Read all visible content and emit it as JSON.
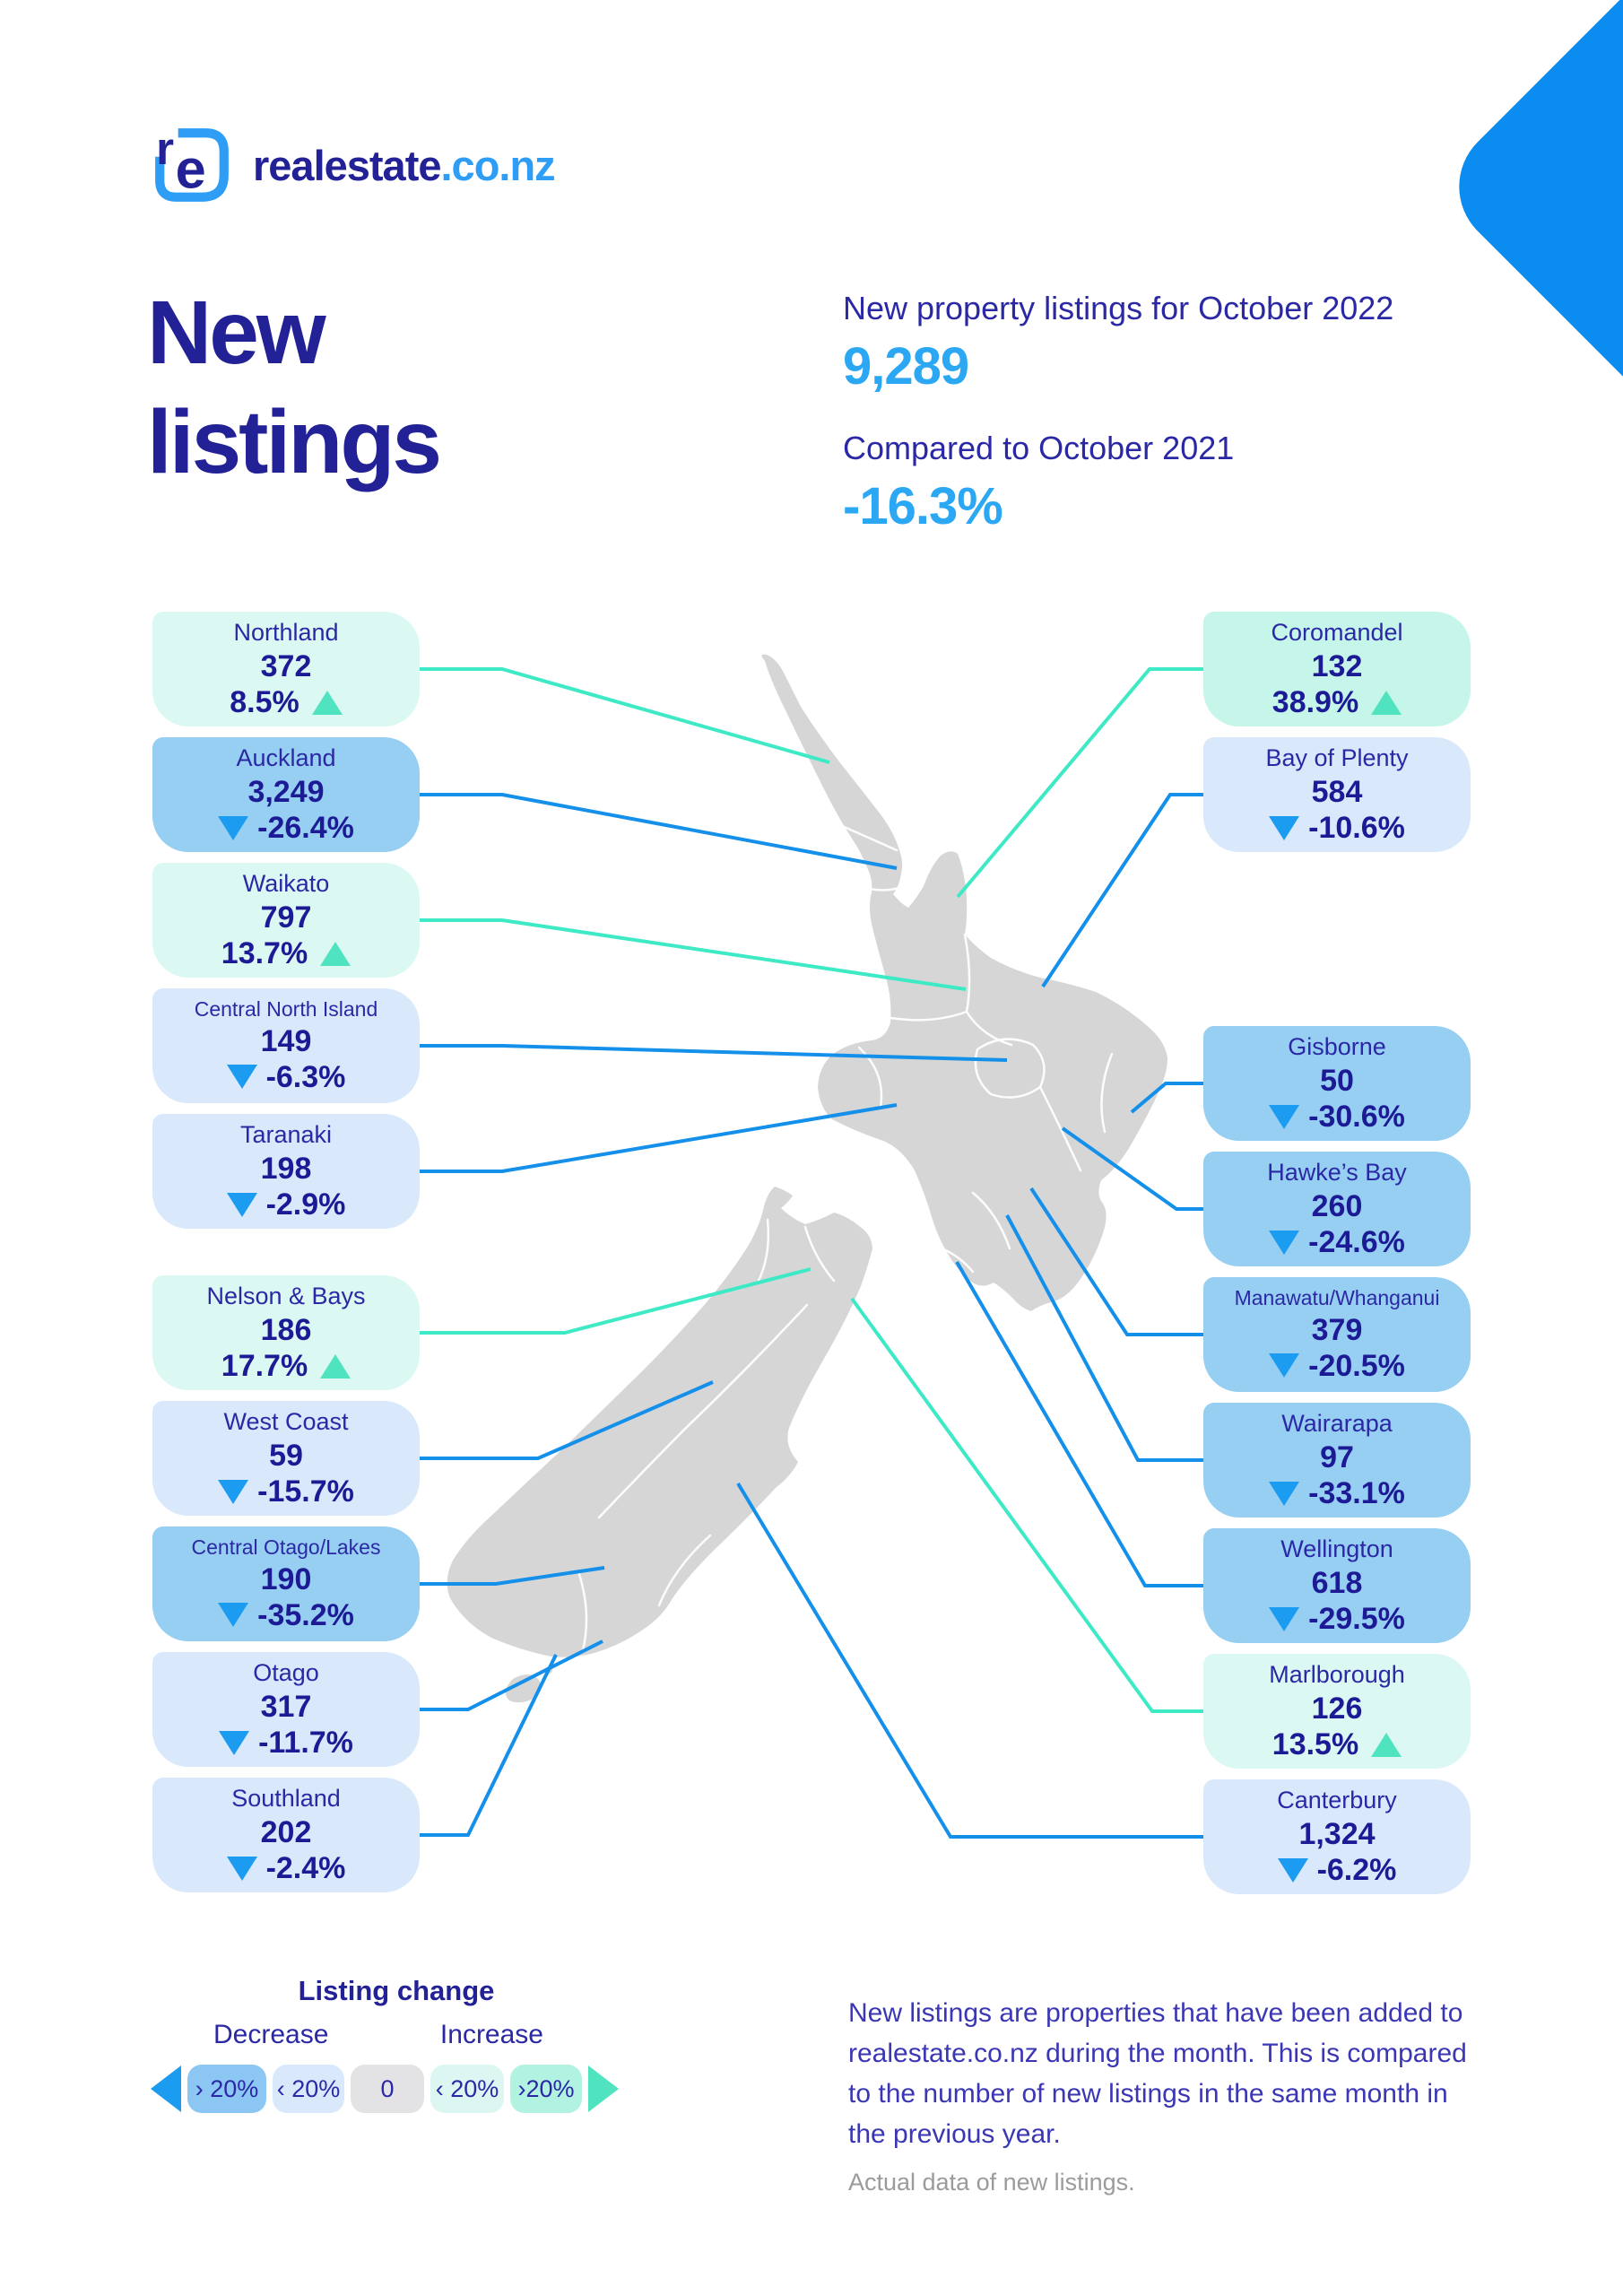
{
  "logo": {
    "icon_text": "re",
    "brand": "realestate",
    "tld": ".co.nz"
  },
  "header": {
    "title_line1": "New",
    "title_line2": "listings",
    "stat1_label": "New property listings for October 2022",
    "stat1_value": "9,289",
    "stat2_label": "Compared to October 2021",
    "stat2_value": "-16.3%"
  },
  "regions": [
    {
      "name": "Northland",
      "side": "left",
      "value": "372",
      "change": "8.5%",
      "direction": "up",
      "magnitude": "small"
    },
    {
      "name": "Auckland",
      "side": "left",
      "value": "3,249",
      "change": "-26.4%",
      "direction": "down",
      "magnitude": "large"
    },
    {
      "name": "Waikato",
      "side": "left",
      "value": "797",
      "change": "13.7%",
      "direction": "up",
      "magnitude": "small"
    },
    {
      "name": "Central North Island",
      "side": "left",
      "value": "149",
      "change": "-6.3%",
      "direction": "down",
      "magnitude": "small"
    },
    {
      "name": "Taranaki",
      "side": "left",
      "value": "198",
      "change": "-2.9%",
      "direction": "down",
      "magnitude": "small"
    },
    {
      "name": "Nelson & Bays",
      "side": "left",
      "value": "186",
      "change": "17.7%",
      "direction": "up",
      "magnitude": "small"
    },
    {
      "name": "West Coast",
      "side": "left",
      "value": "59",
      "change": "-15.7%",
      "direction": "down",
      "magnitude": "small"
    },
    {
      "name": "Central Otago/Lakes",
      "side": "left",
      "value": "190",
      "change": "-35.2%",
      "direction": "down",
      "magnitude": "large"
    },
    {
      "name": "Otago",
      "side": "left",
      "value": "317",
      "change": "-11.7%",
      "direction": "down",
      "magnitude": "small"
    },
    {
      "name": "Southland",
      "side": "left",
      "value": "202",
      "change": "-2.4%",
      "direction": "down",
      "magnitude": "small"
    },
    {
      "name": "Coromandel",
      "side": "right",
      "value": "132",
      "change": "38.9%",
      "direction": "up",
      "magnitude": "large"
    },
    {
      "name": "Bay of Plenty",
      "side": "right",
      "value": "584",
      "change": "-10.6%",
      "direction": "down",
      "magnitude": "small"
    },
    {
      "name": "Gisborne",
      "side": "right",
      "value": "50",
      "change": "-30.6%",
      "direction": "down",
      "magnitude": "large"
    },
    {
      "name": "Hawke’s Bay",
      "side": "right",
      "value": "260",
      "change": "-24.6%",
      "direction": "down",
      "magnitude": "large"
    },
    {
      "name": "Manawatu/Whanganui",
      "side": "right",
      "value": "379",
      "change": "-20.5%",
      "direction": "down",
      "magnitude": "large"
    },
    {
      "name": "Wairarapa",
      "side": "right",
      "value": "97",
      "change": "-33.1%",
      "direction": "down",
      "magnitude": "large"
    },
    {
      "name": "Wellington",
      "side": "right",
      "value": "618",
      "change": "-29.5%",
      "direction": "down",
      "magnitude": "large"
    },
    {
      "name": "Marlborough",
      "side": "right",
      "value": "126",
      "change": "13.5%",
      "direction": "up",
      "magnitude": "small"
    },
    {
      "name": "Canterbury",
      "side": "right",
      "value": "1,324",
      "change": "-6.2%",
      "direction": "down",
      "magnitude": "small"
    }
  ],
  "legend": {
    "title": "Listing change",
    "decrease_label": "Decrease",
    "increase_label": "Increase",
    "pills": [
      {
        "label": "› 20%",
        "color": "#8cc6f2"
      },
      {
        "label": "‹ 20%",
        "color": "#d9e9fb"
      },
      {
        "label": "0",
        "color": "#e3e3e6"
      },
      {
        "label": "‹ 20%",
        "color": "#dcf7f1"
      },
      {
        "label": "›20%",
        "color": "#b2f2e0"
      }
    ]
  },
  "footnote": {
    "text": "New listings are properties that have been added to realestate.co.nz during the month. This is compared to the number of new listings in the same month in the previous year.",
    "subtext": "Actual data of new listings."
  },
  "colors": {
    "indigo": "#232196",
    "text_indigo": "#2b28a5",
    "number_indigo": "#1d1a96",
    "accent_blue": "#2ba7f3",
    "logo_blue": "#2e9df5",
    "corner_blue": "#0a8cf0",
    "card_up_small": "#dcf8f2",
    "card_up_large": "#c5f6e9",
    "card_down_small": "#d9e9fb",
    "card_down_large": "#97cff3",
    "tri_up": "#50e3bf",
    "tri_down": "#1b9cf0",
    "line_up": "#3ee9c5",
    "line_down": "#1490ea",
    "map_gray": "#d6d6d6",
    "footnote_gray": "#9b9b9b"
  }
}
